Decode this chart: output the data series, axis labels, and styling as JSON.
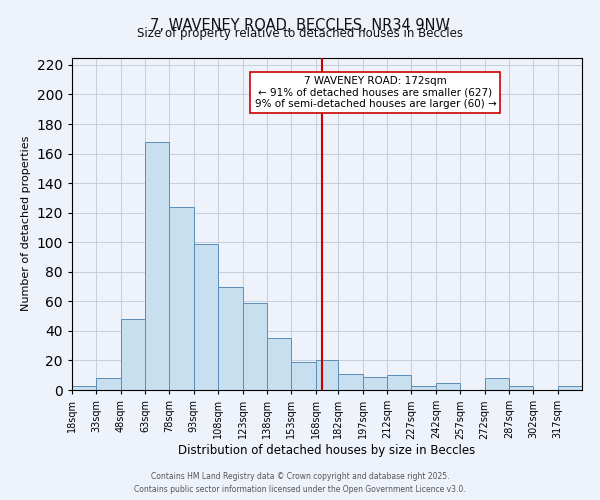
{
  "title": "7, WAVENEY ROAD, BECCLES, NR34 9NW",
  "subtitle": "Size of property relative to detached houses in Beccles",
  "xlabel": "Distribution of detached houses by size in Beccles",
  "ylabel": "Number of detached properties",
  "bin_labels": [
    "18sqm",
    "33sqm",
    "48sqm",
    "63sqm",
    "78sqm",
    "93sqm",
    "108sqm",
    "123sqm",
    "138sqm",
    "153sqm",
    "168sqm",
    "182sqm",
    "197sqm",
    "212sqm",
    "227sqm",
    "242sqm",
    "257sqm",
    "272sqm",
    "287sqm",
    "302sqm",
    "317sqm"
  ],
  "bin_edges": [
    18,
    33,
    48,
    63,
    78,
    93,
    108,
    123,
    138,
    153,
    168,
    182,
    197,
    212,
    227,
    242,
    257,
    272,
    287,
    302,
    317,
    332
  ],
  "bar_heights": [
    3,
    8,
    48,
    168,
    124,
    99,
    70,
    59,
    35,
    19,
    20,
    11,
    9,
    10,
    3,
    5,
    0,
    8,
    3,
    0,
    3
  ],
  "bar_color": "#c8dff0",
  "bar_edge_color": "#5b8db8",
  "bar_alpha": 1.0,
  "vline_x": 172,
  "vline_color": "#cc0000",
  "annotation_title": "7 WAVENEY ROAD: 172sqm",
  "annotation_line1": "← 91% of detached houses are smaller (627)",
  "annotation_line2": "9% of semi-detached houses are larger (60) →",
  "annotation_box_facecolor": "#ffffff",
  "annotation_box_edgecolor": "#cc0000",
  "ylim": [
    0,
    225
  ],
  "yticks": [
    0,
    20,
    40,
    60,
    80,
    100,
    120,
    140,
    160,
    180,
    200,
    220
  ],
  "grid_color": "#c0c8d8",
  "background_color": "#eef2fa",
  "footer1": "Contains HM Land Registry data © Crown copyright and database right 2025.",
  "footer2": "Contains public sector information licensed under the Open Government Licence v3.0."
}
